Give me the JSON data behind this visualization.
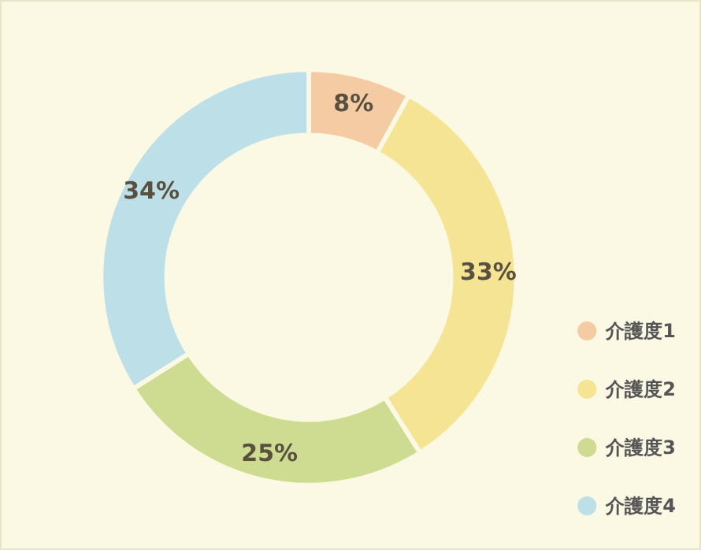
{
  "chart_data": {
    "type": "donut",
    "categories": [
      "介護度1",
      "介護度2",
      "介護度3",
      "介護度4"
    ],
    "values": [
      8,
      33,
      25,
      34
    ],
    "colors": [
      "#f4cba2",
      "#f4e494",
      "#cddc90",
      "#bcdfe8"
    ],
    "value_labels": [
      "8%",
      "33%",
      "25%",
      "34%"
    ],
    "legend": "bottom right"
  }
}
